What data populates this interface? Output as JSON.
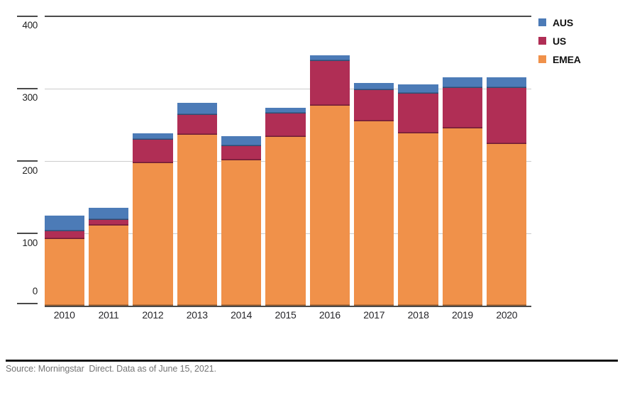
{
  "chart_data": {
    "type": "bar",
    "stacked": true,
    "title": "",
    "xlabel": "",
    "ylabel": "",
    "categories": [
      "2010",
      "2011",
      "2012",
      "2013",
      "2014",
      "2015",
      "2016",
      "2017",
      "2018",
      "2019",
      "2020"
    ],
    "series": [
      {
        "name": "AUS",
        "color": "#4C7BB7",
        "values": [
          22,
          16,
          9,
          16,
          13,
          7,
          8,
          10,
          13,
          14,
          14
        ]
      },
      {
        "name": "US",
        "color": "#B02E55",
        "values": [
          11,
          8,
          32,
          28,
          20,
          33,
          62,
          43,
          55,
          56,
          78
        ]
      },
      {
        "name": "EMEA",
        "color": "#F0914A",
        "values": [
          92,
          111,
          197,
          236,
          201,
          233,
          276,
          255,
          238,
          245,
          223
        ]
      }
    ],
    "stack_order_bottom_to_top": [
      "EMEA",
      "US",
      "AUS"
    ],
    "y_ticks": [
      0,
      100,
      200,
      300,
      400
    ],
    "ylim": [
      0,
      400
    ],
    "grid": "horizontal",
    "legend_position": "top-right"
  },
  "footer": {
    "source_text": "Source: Morningstar  Direct. Data as of June 15, 2021."
  }
}
